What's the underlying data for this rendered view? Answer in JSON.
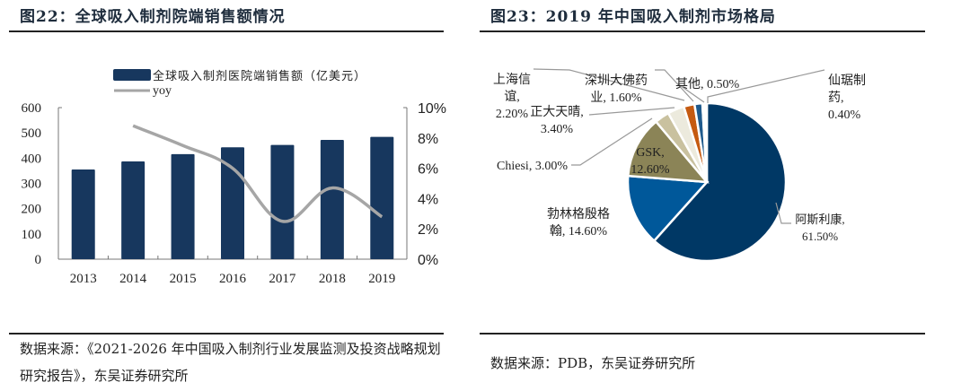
{
  "left_panel": {
    "title": "图22：全球吸入制剂院端销售额情况",
    "source": "数据来源：《2021-2026 年中国吸入制剂行业发展监测及投资战略规划研究报告》，东吴证券研究所"
  },
  "right_panel": {
    "title": "图23：2019 年中国吸入制剂市场格局",
    "source": "数据来源：PDB，东吴证券研究所"
  },
  "chart_data": [
    {
      "type": "bar",
      "title": "全球吸入制剂院端销售额情况",
      "categories": [
        "2013",
        "2014",
        "2015",
        "2016",
        "2017",
        "2018",
        "2019"
      ],
      "series": [
        {
          "name": "全球吸入制剂医院端销售额（亿美元）",
          "type": "bar",
          "axis": "left",
          "color": "#17375E",
          "values": [
            355,
            387,
            416,
            443,
            452,
            472,
            484
          ]
        },
        {
          "name": "yoy",
          "type": "line",
          "axis": "right",
          "color": "#A6A6A6",
          "values": [
            null,
            8.8,
            7.5,
            6.0,
            2.5,
            4.7,
            2.8
          ]
        }
      ],
      "ylim": [
        0,
        600
      ],
      "yticks": [
        "0",
        "100",
        "200",
        "300",
        "400",
        "500",
        "600"
      ],
      "y2lim": [
        0,
        10
      ],
      "y2ticks": [
        "0%",
        "2%",
        "4%",
        "6%",
        "8%",
        "10%"
      ],
      "xlabel": "",
      "ylabel": "",
      "y2label": "",
      "legend": "top-center",
      "grid": false
    },
    {
      "type": "pie",
      "title": "2019 年中国吸入制剂市场格局",
      "slices": [
        {
          "label": "阿斯利康, 61.50%",
          "value": 61.5,
          "color": "#003865"
        },
        {
          "label": "勃林格殷格翰, 14.60%",
          "value": 14.6,
          "color": "#00589A"
        },
        {
          "label": "GSK, 12.60%",
          "value": 12.6,
          "color": "#8B8457"
        },
        {
          "label": "Chiesi, 3.00%",
          "value": 3.0,
          "color": "#C9C19F"
        },
        {
          "label": "正大天晴, 3.40%",
          "value": 3.4,
          "color": "#ECEADD"
        },
        {
          "label": "上海信谊, 2.20%",
          "value": 2.2,
          "color": "#C55A11"
        },
        {
          "label": "深圳大佛药业, 1.60%",
          "value": 1.6,
          "color": "#1F5A8C"
        },
        {
          "label": "其他, 0.50%",
          "value": 0.5,
          "color": "#FFFFFF"
        },
        {
          "label": "仙琚制药, 0.40%",
          "value": 0.4,
          "color": "#FFFFFF"
        }
      ],
      "label_lines": {
        "az": [
          "阿斯利康,",
          "61.50%"
        ],
        "bi": [
          "勃林格殷格",
          "翰, 14.60%"
        ],
        "gsk": [
          "GSK,",
          "12.60%"
        ],
        "chiesi": [
          "Chiesi, 3.00%"
        ],
        "zd": [
          "正大天晴,",
          "3.40%"
        ],
        "sh": [
          "上海信",
          "谊,",
          "2.20%"
        ],
        "sz": [
          "深圳大佛药",
          "业, 1.60%"
        ],
        "other": [
          "其他, 0.50%"
        ],
        "xj": [
          "仙琚制",
          "药,",
          "0.40%"
        ]
      },
      "legend": "none"
    }
  ]
}
